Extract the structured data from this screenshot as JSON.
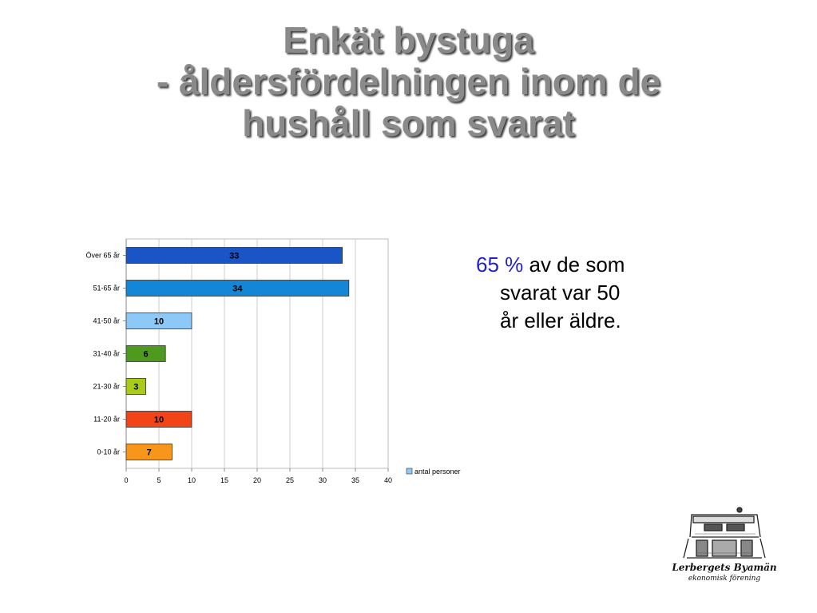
{
  "title": {
    "line1": "Enkät bystuga",
    "line2": "- åldersfördelningen inom de",
    "line3": "hushåll som svarat"
  },
  "note": {
    "highlight": "65 %",
    "rest_line1": " av de som",
    "line2": "svarat var 50",
    "line3": "år eller äldre.",
    "highlight_color": "#1f1fd0"
  },
  "logo": {
    "text_line1": "Lerbergets Byamän",
    "text_line2": "ekonomisk förening"
  },
  "chart_data": {
    "type": "bar",
    "orientation": "horizontal",
    "categories": [
      "Över 65 år",
      "51-65 år",
      "41-50 år",
      "31-40 år",
      "21-30 år",
      "11-20 år",
      "0-10 år"
    ],
    "values": [
      33,
      34,
      10,
      6,
      3,
      10,
      7
    ],
    "colors": [
      "#1a55c8",
      "#1486d8",
      "#8ec8f6",
      "#4e9a1e",
      "#a8cc18",
      "#f24418",
      "#f8961c"
    ],
    "series": [
      {
        "name": "antal personer",
        "values": [
          33,
          34,
          10,
          6,
          3,
          10,
          7
        ]
      }
    ],
    "xticks": [
      0,
      5,
      10,
      15,
      20,
      25,
      30,
      35,
      40
    ],
    "xlim": [
      0,
      40
    ],
    "grid": "vertical",
    "legend_position": "right",
    "legend_color": "#8ec8f6"
  }
}
